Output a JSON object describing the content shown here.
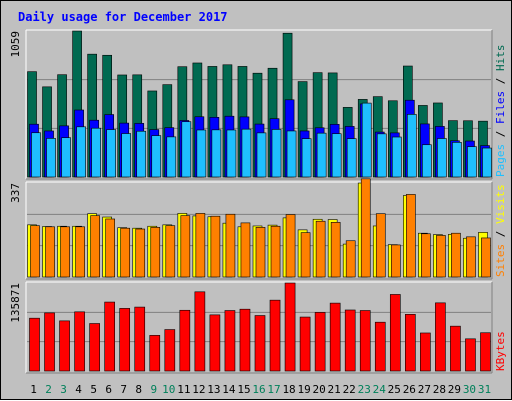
{
  "chart_data": [
    {
      "type": "bar",
      "title": "Daily usage for December 2017",
      "categories": [
        "1",
        "2",
        "3",
        "4",
        "5",
        "6",
        "7",
        "8",
        "9",
        "10",
        "11",
        "12",
        "13",
        "14",
        "15",
        "16",
        "17",
        "18",
        "19",
        "20",
        "21",
        "22",
        "23",
        "24",
        "25",
        "26",
        "27",
        "28",
        "29",
        "30",
        "31"
      ],
      "weekend_categories": [
        "2",
        "3",
        "9",
        "10",
        "16",
        "17",
        "23",
        "24",
        "30",
        "31"
      ],
      "ymax_label": "1059",
      "ylim": [
        0,
        1059
      ],
      "series": [
        {
          "name": "Hits",
          "color": "#006a51",
          "values": [
            764,
            654,
            742,
            1059,
            891,
            883,
            740,
            741,
            624,
            670,
            800,
            827,
            802,
            814,
            802,
            753,
            789,
            1043,
            692,
            757,
            755,
            505,
            563,
            583,
            553,
            805,
            519,
            537,
            409,
            408,
            405
          ]
        },
        {
          "name": "Files",
          "color": "#0000ff",
          "values": [
            383,
            334,
            371,
            486,
            412,
            453,
            391,
            389,
            344,
            358,
            410,
            437,
            433,
            441,
            436,
            384,
            423,
            560,
            334,
            357,
            382,
            367,
            530,
            326,
            320,
            557,
            385,
            367,
            263,
            261,
            228
          ]
        },
        {
          "name": "Pages",
          "color": "#1fbfff",
          "values": [
            321,
            280,
            285,
            364,
            354,
            344,
            315,
            332,
            300,
            291,
            401,
            341,
            342,
            341,
            347,
            320,
            345,
            334,
            278,
            318,
            314,
            278,
            536,
            313,
            290,
            454,
            234,
            279,
            251,
            220,
            210
          ]
        }
      ],
      "legend": [
        "Pages",
        "/",
        "Files",
        "/",
        "Hits"
      ],
      "legend_colors": [
        "#1fbfff",
        "#000000",
        "#0000ff",
        "#000000",
        "#006a51"
      ]
    },
    {
      "type": "bar",
      "ymax_label": "337",
      "ylim": [
        0,
        337
      ],
      "series": [
        {
          "name": "Visits",
          "color": "#ffff00",
          "values": [
            187,
            181,
            182,
            182,
            227,
            215,
            177,
            175,
            182,
            187,
            228,
            219,
            216,
            193,
            180,
            183,
            186,
            212,
            169,
            207,
            206,
            118,
            337,
            183,
            116,
            292,
            157,
            152,
            153,
            139,
            160
          ]
        },
        {
          "name": "Sites",
          "color": "#ff8000",
          "values": [
            184,
            180,
            180,
            180,
            220,
            208,
            175,
            172,
            178,
            184,
            220,
            228,
            218,
            225,
            194,
            178,
            182,
            224,
            159,
            200,
            196,
            130,
            352,
            227,
            115,
            296,
            155,
            149,
            157,
            144,
            140
          ]
        }
      ],
      "legend": [
        "Sites",
        "/",
        "Visits"
      ],
      "legend_colors": [
        "#ff8000",
        "#000000",
        "#ffff00"
      ]
    },
    {
      "type": "bar",
      "ymax_label": "135871",
      "ylim": [
        0,
        135871
      ],
      "series": [
        {
          "name": "KBytes",
          "color": "#ff0000",
          "values": [
            81561,
            89714,
            77404,
            91345,
            73327,
            106441,
            96657,
            98687,
            55046,
            64002,
            93791,
            122261,
            86671,
            93383,
            95434,
            85650,
            109378,
            135871,
            83302,
            90530,
            104810,
            94197,
            93383,
            75364,
            118185,
            87484,
            58714,
            105218,
            69245,
            49685,
            59068
          ]
        }
      ],
      "legend": [
        "KBytes"
      ],
      "legend_colors": [
        "#ff0000"
      ]
    }
  ]
}
